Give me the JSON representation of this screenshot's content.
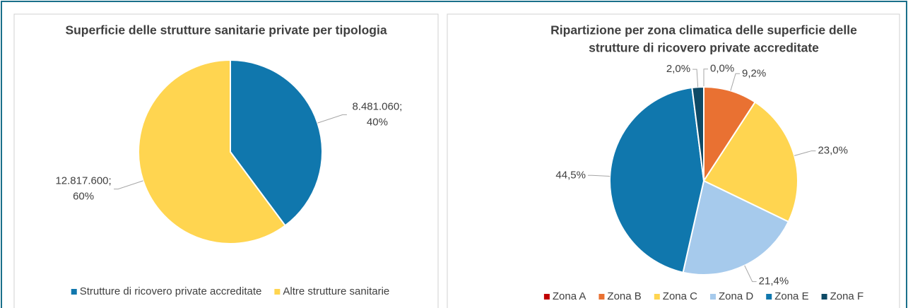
{
  "chart_data": [
    {
      "type": "pie",
      "title": [
        "Superficie delle strutture sanitarie private per tipologia"
      ],
      "categories": [
        "Strutture di ricovero private accreditate",
        "Altre strutture sanitarie"
      ],
      "values": [
        8481060,
        12817600
      ],
      "value_labels": [
        [
          "8.481.060;",
          "40%"
        ],
        [
          "12.817.600;",
          "60%"
        ]
      ],
      "colors": [
        "#1077ad",
        "#ffd550"
      ],
      "legend": "bottom"
    },
    {
      "type": "pie",
      "title": [
        "Ripartizione per zona climatica delle superficie delle",
        "strutture di ricovero private accreditate"
      ],
      "categories": [
        "Zona A",
        "Zona B",
        "Zona C",
        "Zona D",
        "Zona E",
        "Zona F"
      ],
      "values": [
        0.0,
        9.2,
        23.0,
        21.4,
        44.5,
        2.0
      ],
      "value_labels": [
        [
          "0,0%"
        ],
        [
          "9,2%"
        ],
        [
          "23,0%"
        ],
        [
          "21,4%"
        ],
        [
          "44,5%"
        ],
        [
          "2,0%"
        ]
      ],
      "colors": [
        "#c00000",
        "#e97132",
        "#ffd550",
        "#a6caec",
        "#1077ad",
        "#0e4a66"
      ],
      "legend": "bottom"
    }
  ]
}
